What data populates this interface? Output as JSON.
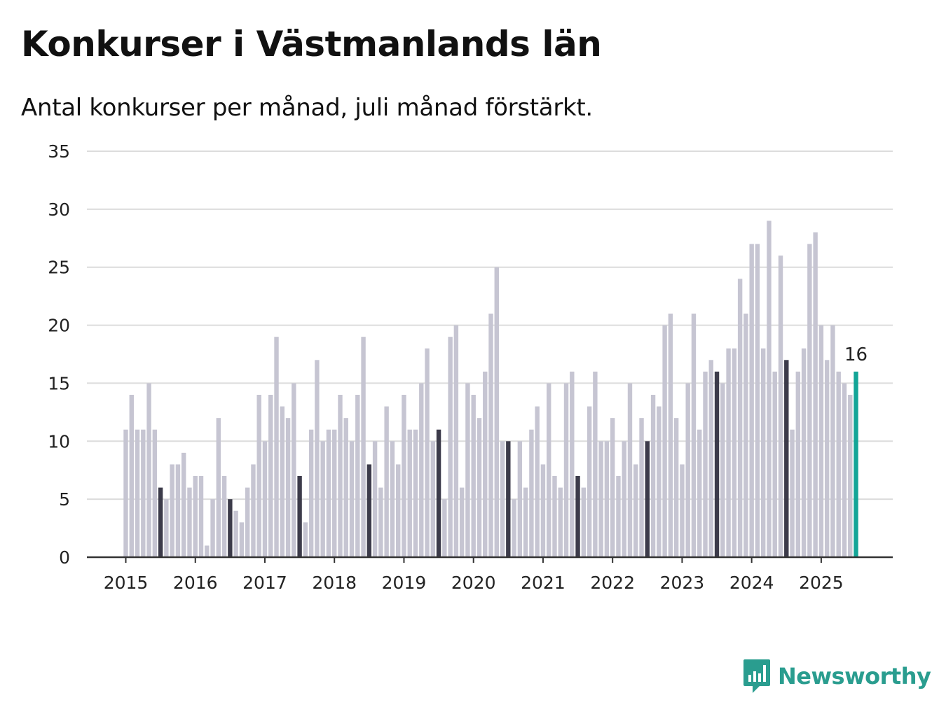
{
  "colors": {
    "bar": "#c6c5d2",
    "july": "#3c3b4a",
    "latest": "#13a597",
    "grid": "#dcdcdc",
    "axis": "#333333",
    "text": "#222222",
    "brand": "#2a9d8f"
  },
  "logo": {
    "text": "Newsworthy",
    "icon": "chart-bubble-icon"
  },
  "chart_data": {
    "type": "bar",
    "title": "Konkurser i Västmanlands län",
    "subtitle": "Antal konkurser per månad, juli månad förstärkt.",
    "xlabel": "",
    "ylabel": "",
    "ylim": [
      0,
      35
    ],
    "yticks": [
      0,
      5,
      10,
      15,
      20,
      25,
      30,
      35
    ],
    "grid": true,
    "start_month": "2015-01",
    "year_labels": [
      "2015",
      "2016",
      "2017",
      "2018",
      "2019",
      "2020",
      "2021",
      "2022",
      "2023",
      "2024",
      "2025"
    ],
    "highlight": "July bars emphasized; latest month labeled",
    "latest_label": "16",
    "values": [
      11,
      14,
      11,
      11,
      15,
      11,
      6,
      5,
      8,
      8,
      9,
      6,
      7,
      7,
      1,
      5,
      12,
      7,
      5,
      4,
      3,
      6,
      8,
      14,
      10,
      14,
      19,
      13,
      12,
      15,
      7,
      3,
      11,
      17,
      10,
      11,
      11,
      14,
      12,
      10,
      14,
      19,
      8,
      10,
      6,
      13,
      10,
      8,
      14,
      11,
      11,
      15,
      18,
      10,
      11,
      5,
      19,
      20,
      6,
      15,
      14,
      12,
      16,
      21,
      25,
      10,
      10,
      5,
      10,
      6,
      11,
      13,
      8,
      15,
      7,
      6,
      15,
      16,
      7,
      6,
      13,
      16,
      10,
      10,
      12,
      7,
      10,
      15,
      8,
      12,
      10,
      14,
      13,
      20,
      21,
      12,
      8,
      15,
      21,
      11,
      16,
      17,
      16,
      15,
      18,
      18,
      24,
      21,
      27,
      27,
      18,
      29,
      16,
      26,
      17,
      11,
      16,
      18,
      27,
      28,
      20,
      17,
      20,
      16,
      15,
      14,
      16
    ]
  }
}
